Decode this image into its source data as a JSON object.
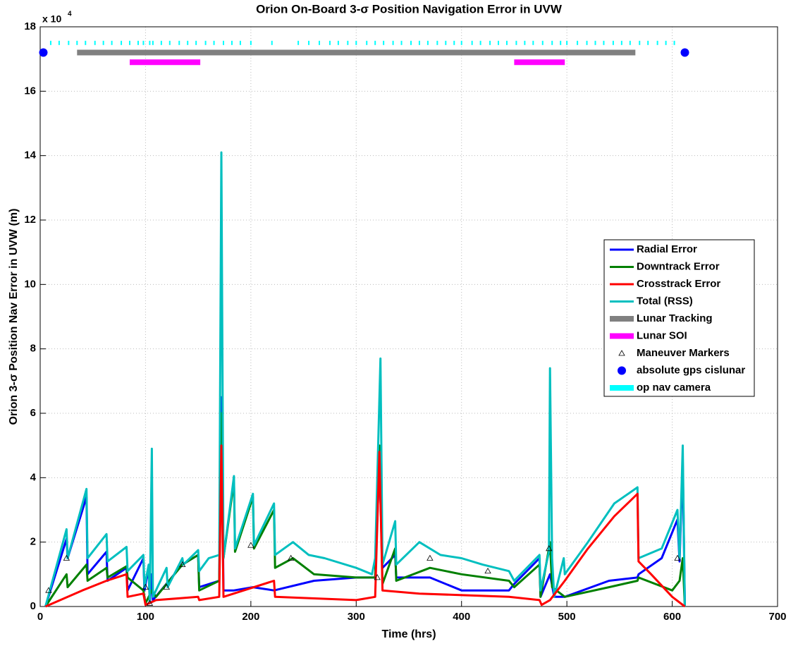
{
  "chart_data": {
    "type": "line",
    "title": "Orion On-Board 3-σ Position Navigation Error in UVW",
    "xlabel": "Time (hrs)",
    "ylabel": "Orion 3-σ Position Nav Error in UVW (m)",
    "y_multiplier": "x 10",
    "y_multiplier_exponent": "4",
    "xlim": [
      0,
      700
    ],
    "xticks": [
      0,
      100,
      200,
      300,
      400,
      500,
      600,
      700
    ],
    "ylim": [
      0,
      18
    ],
    "yticks": [
      0,
      2,
      4,
      6,
      8,
      10,
      12,
      14,
      16,
      18
    ],
    "grid": true,
    "legend": "right",
    "series": [
      {
        "name": "Radial Error",
        "color": "#0000ff",
        "kind": "line",
        "x": [
          5,
          25,
          26,
          44,
          45,
          63,
          64,
          82,
          83,
          98,
          99,
          103,
          104,
          106,
          107,
          135,
          150,
          151,
          170,
          172,
          174,
          184,
          202,
          222,
          260,
          300,
          318,
          322,
          325,
          337,
          338,
          370,
          400,
          445,
          450,
          474,
          475,
          484,
          488,
          498,
          540,
          567,
          568,
          590,
          605,
          607,
          610,
          612
        ],
        "values": [
          0,
          2.1,
          1.5,
          3.4,
          1.0,
          1.7,
          0.8,
          1.2,
          0.5,
          1.5,
          0.5,
          1.2,
          0.1,
          1.0,
          0.2,
          1.3,
          1.6,
          0.6,
          0.8,
          6.5,
          0.5,
          0.5,
          0.6,
          0.5,
          0.8,
          0.9,
          0.9,
          4.5,
          1.2,
          1.6,
          0.9,
          0.9,
          0.5,
          0.5,
          0.7,
          1.5,
          0.3,
          1.0,
          0.3,
          0.3,
          0.8,
          0.9,
          1.0,
          1.5,
          2.7,
          1.4,
          4.5,
          0
        ]
      },
      {
        "name": "Downtrack Error",
        "color": "#008000",
        "kind": "line",
        "x": [
          5,
          25,
          26,
          44,
          45,
          63,
          64,
          82,
          83,
          98,
          100,
          106,
          110,
          135,
          150,
          151,
          170,
          172,
          174,
          184,
          185,
          202,
          203,
          222,
          223,
          240,
          260,
          300,
          318,
          322,
          325,
          337,
          338,
          370,
          400,
          445,
          450,
          474,
          475,
          484,
          486,
          498,
          540,
          567,
          568,
          600,
          607,
          610,
          612
        ],
        "values": [
          0,
          1.0,
          0.6,
          1.3,
          0.8,
          1.2,
          0.9,
          1.25,
          0.9,
          0.5,
          0.1,
          0.5,
          0.3,
          1.3,
          1.6,
          0.5,
          0.8,
          6.0,
          1.5,
          3.9,
          1.7,
          3.4,
          1.8,
          3.0,
          1.2,
          1.5,
          1.0,
          0.9,
          0.9,
          5.0,
          0.7,
          1.8,
          0.8,
          1.2,
          1.0,
          0.8,
          0.6,
          1.3,
          0.3,
          2.0,
          0.6,
          0.3,
          0.6,
          0.8,
          0.9,
          0.5,
          0.8,
          1.5,
          0
        ]
      },
      {
        "name": "Crosstrack Error",
        "color": "#ff0000",
        "kind": "line",
        "x": [
          5,
          40,
          63,
          82,
          83,
          98,
          100,
          110,
          150,
          151,
          170,
          172,
          174,
          222,
          223,
          300,
          318,
          322,
          325,
          360,
          445,
          474,
          476,
          484,
          498,
          520,
          545,
          567,
          568,
          580,
          600,
          612
        ],
        "values": [
          0,
          0.5,
          0.8,
          1.0,
          0.3,
          0.4,
          0.05,
          0.2,
          0.3,
          0.2,
          0.3,
          5.0,
          0.3,
          0.8,
          0.3,
          0.2,
          0.3,
          4.8,
          0.5,
          0.4,
          0.3,
          0.2,
          0.05,
          0.2,
          0.8,
          1.8,
          2.8,
          3.5,
          1.4,
          1.0,
          0.3,
          0
        ]
      },
      {
        "name": "Total (RSS)",
        "color": "#00bfbf",
        "kind": "line",
        "x": [
          5,
          25,
          26,
          44,
          45,
          63,
          64,
          82,
          83,
          98,
          99,
          103,
          104,
          106,
          107,
          120,
          121,
          135,
          136,
          150,
          151,
          160,
          170,
          172,
          174,
          184,
          185,
          202,
          203,
          222,
          223,
          240,
          255,
          270,
          300,
          315,
          318,
          323,
          325,
          337,
          338,
          360,
          380,
          400,
          420,
          445,
          450,
          474,
          475,
          483,
          484,
          486,
          488,
          497,
          498,
          520,
          545,
          567,
          568,
          590,
          605,
          607,
          610,
          612
        ],
        "values": [
          0,
          2.4,
          1.5,
          3.65,
          1.5,
          2.25,
          1.4,
          1.85,
          1.1,
          1.6,
          0.6,
          1.3,
          0.1,
          4.9,
          0.3,
          1.2,
          0.6,
          1.5,
          1.3,
          1.75,
          1.1,
          1.5,
          1.6,
          14.1,
          1.5,
          4.05,
          1.8,
          3.5,
          1.9,
          3.2,
          1.6,
          2.0,
          1.6,
          1.5,
          1.2,
          1.0,
          1.5,
          7.7,
          1.3,
          2.65,
          1.3,
          2.0,
          1.6,
          1.5,
          1.3,
          1.1,
          0.8,
          1.6,
          0.5,
          1.7,
          7.4,
          1.5,
          0.3,
          1.5,
          1.0,
          2.0,
          3.2,
          3.7,
          1.5,
          1.8,
          3.0,
          1.5,
          5.0,
          0
        ]
      },
      {
        "name": "Lunar Tracking",
        "color": "#808080",
        "kind": "segment",
        "x": [
          35,
          565
        ],
        "values": [
          17.2,
          17.2
        ]
      },
      {
        "name": "Lunar SOI",
        "color": "#ff00ff",
        "kind": "segment",
        "x": [
          85,
          152,
          null,
          450,
          498
        ],
        "values": [
          16.9,
          16.9,
          null,
          16.9,
          16.9
        ]
      },
      {
        "name": "Maneuver Markers",
        "color": "#000000",
        "kind": "triangle",
        "x": [
          8,
          25,
          100,
          104,
          120,
          135,
          200,
          238,
          320,
          370,
          425,
          483,
          605
        ],
        "values": [
          0.5,
          1.5,
          0.6,
          0.1,
          0.6,
          1.3,
          1.9,
          1.5,
          0.9,
          1.5,
          1.1,
          1.8,
          1.5
        ]
      },
      {
        "name": "absolute gps cislunar",
        "color": "#0000ff",
        "kind": "dot",
        "x": [
          3,
          612
        ],
        "values": [
          17.2,
          17.2
        ]
      },
      {
        "name": "op nav camera",
        "color": "#00ffff",
        "kind": "tick",
        "x": [
          10,
          18,
          27,
          35,
          43,
          52,
          60,
          68,
          77,
          85,
          93,
          98,
          104,
          107,
          115,
          123,
          132,
          140,
          148,
          157,
          165,
          174,
          182,
          190,
          200,
          220,
          245,
          255,
          265,
          275,
          283,
          292,
          300,
          310,
          318,
          326,
          335,
          343,
          352,
          360,
          368,
          377,
          385,
          393,
          400,
          410,
          418,
          427,
          435,
          443,
          452,
          460,
          468,
          477,
          486,
          494,
          500,
          510,
          519,
          527,
          535,
          544,
          552,
          560,
          569,
          577,
          586,
          594,
          602
        ],
        "values": [
          17.5,
          17.5,
          17.5,
          17.5,
          17.5,
          17.5,
          17.5,
          17.5,
          17.5,
          17.5,
          17.5,
          17.5,
          17.5,
          17.5,
          17.5,
          17.5,
          17.5,
          17.5,
          17.5,
          17.5,
          17.5,
          17.5,
          17.5,
          17.5,
          17.5,
          17.5,
          17.5,
          17.5,
          17.5,
          17.5,
          17.5,
          17.5,
          17.5,
          17.5,
          17.5,
          17.5,
          17.5,
          17.5,
          17.5,
          17.5,
          17.5,
          17.5,
          17.5,
          17.5,
          17.5,
          17.5,
          17.5,
          17.5,
          17.5,
          17.5,
          17.5,
          17.5,
          17.5,
          17.5,
          17.5,
          17.5,
          17.5,
          17.5,
          17.5,
          17.5,
          17.5,
          17.5,
          17.5,
          17.5,
          17.5,
          17.5,
          17.5,
          17.5,
          17.5
        ]
      }
    ]
  }
}
